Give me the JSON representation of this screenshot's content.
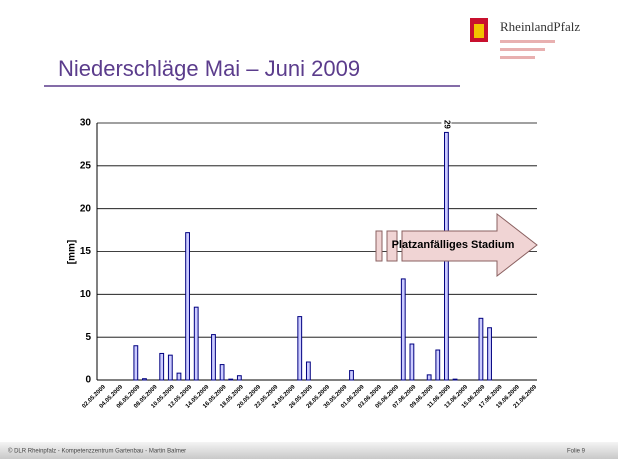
{
  "chart_data": {
    "type": "bar",
    "title": "Niederschläge Mai – Juni 2009",
    "y_label": "[mm]",
    "annotation": "Platzanfälliges Stadium",
    "categories": [
      "02.05.2009",
      null,
      "04.05.2009",
      null,
      "06.05.2009",
      null,
      "08.05.2009",
      null,
      "10.05.2009",
      null,
      "12.05.2009",
      null,
      "14.05.2009",
      null,
      "16.05.2009",
      null,
      "18.05.2009",
      null,
      "20.05.2009",
      null,
      "22.05.2009",
      null,
      "24.05.2009",
      null,
      "26.05.2009",
      null,
      "28.05.2009",
      null,
      "30.05.2009",
      null,
      "01.06.2009",
      null,
      "03.06.2009",
      null,
      "05.06.2009",
      null,
      "07.06.2009",
      null,
      "09.06.2009",
      null,
      "11.06.2009",
      null,
      "13.06.2009",
      null,
      "15.06.2009",
      null,
      "17.06.2009",
      null,
      "19.06.2009",
      null,
      "21.06.2009"
    ],
    "values": [
      0,
      0,
      0,
      0,
      4.0,
      0.15,
      0,
      3.1,
      2.9,
      0.8,
      17.2,
      8.5,
      0,
      5.3,
      1.8,
      0.1,
      0.5,
      0,
      0,
      0,
      0,
      0,
      0,
      7.4,
      2.1,
      0,
      0,
      0,
      0,
      1.1,
      0,
      0,
      0,
      0,
      0,
      11.8,
      4.2,
      0,
      0.6,
      3.5,
      28.9,
      0.1,
      0,
      0,
      7.2,
      6.1,
      0,
      0,
      0,
      0,
      0
    ],
    "value_labels": [
      null,
      null,
      null,
      null,
      null,
      null,
      null,
      null,
      null,
      null,
      null,
      null,
      null,
      null,
      null,
      null,
      null,
      null,
      null,
      null,
      null,
      null,
      null,
      null,
      null,
      null,
      null,
      null,
      null,
      null,
      null,
      null,
      null,
      null,
      null,
      null,
      null,
      null,
      null,
      null,
      "29",
      null,
      null,
      null,
      null,
      null,
      null,
      null,
      null,
      null,
      null
    ],
    "color": "#ccccff",
    "edge_color": "#000080",
    "ylim": [
      0,
      30
    ],
    "yticks": [
      0,
      5,
      10,
      15,
      20,
      25,
      30
    ],
    "grid": true
  },
  "logo": "RheinlandPfalz",
  "footer": {
    "left": "© DLR Rheinpfalz - Kompetenzzentrum Gartenbau - Martin Balmer",
    "right": "Folie 9"
  }
}
